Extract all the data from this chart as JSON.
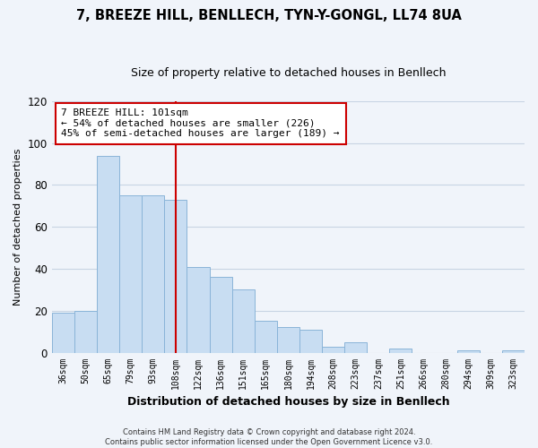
{
  "title": "7, BREEZE HILL, BENLLECH, TYN-Y-GONGL, LL74 8UA",
  "subtitle": "Size of property relative to detached houses in Benllech",
  "xlabel": "Distribution of detached houses by size in Benllech",
  "ylabel": "Number of detached properties",
  "bar_color": "#c8ddf2",
  "bar_edge_color": "#8ab4d8",
  "categories": [
    "36sqm",
    "50sqm",
    "65sqm",
    "79sqm",
    "93sqm",
    "108sqm",
    "122sqm",
    "136sqm",
    "151sqm",
    "165sqm",
    "180sqm",
    "194sqm",
    "208sqm",
    "223sqm",
    "237sqm",
    "251sqm",
    "266sqm",
    "280sqm",
    "294sqm",
    "309sqm",
    "323sqm"
  ],
  "values": [
    19,
    20,
    94,
    75,
    75,
    73,
    41,
    36,
    30,
    15,
    12,
    11,
    3,
    5,
    0,
    2,
    0,
    0,
    1,
    0,
    1
  ],
  "ylim": [
    0,
    120
  ],
  "yticks": [
    0,
    20,
    40,
    60,
    80,
    100,
    120
  ],
  "vline_x": 5,
  "vline_color": "#cc0000",
  "annotation_title": "7 BREEZE HILL: 101sqm",
  "annotation_line1": "← 54% of detached houses are smaller (226)",
  "annotation_line2": "45% of semi-detached houses are larger (189) →",
  "annotation_box_color": "#ffffff",
  "annotation_box_edge": "#cc0000",
  "footer1": "Contains HM Land Registry data © Crown copyright and database right 2024.",
  "footer2": "Contains public sector information licensed under the Open Government Licence v3.0.",
  "background_color": "#f0f4fa",
  "grid_color": "#c8d4e4"
}
